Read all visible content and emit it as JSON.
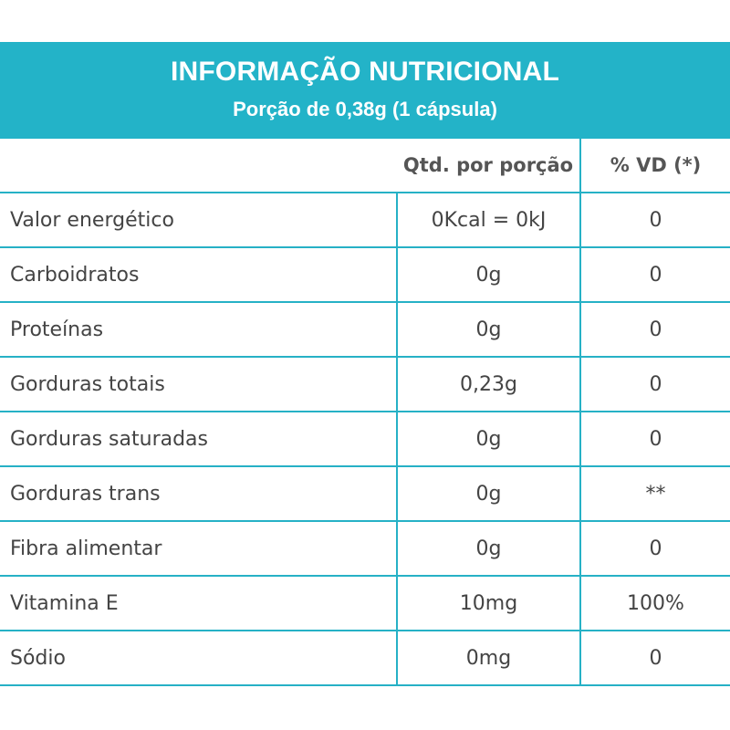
{
  "header": {
    "title": "INFORMAÇÃO NUTRICIONAL",
    "subtitle": "Porção de 0,38g (1 cápsula)"
  },
  "table": {
    "columns": [
      "",
      "Qtd. por porção",
      "% VD (*)"
    ],
    "rows": [
      {
        "name": "Valor energético",
        "qty": "0Kcal = 0kJ",
        "vd": "0"
      },
      {
        "name": "Carboidratos",
        "qty": "0g",
        "vd": "0"
      },
      {
        "name": "Proteínas",
        "qty": "0g",
        "vd": "0"
      },
      {
        "name": "Gorduras totais",
        "qty": "0,23g",
        "vd": "0"
      },
      {
        "name": "Gorduras saturadas",
        "qty": "0g",
        "vd": "0"
      },
      {
        "name": "Gorduras trans",
        "qty": "0g",
        "vd": "**"
      },
      {
        "name": "Fibra alimentar",
        "qty": "0g",
        "vd": "0"
      },
      {
        "name": "Vitamina E",
        "qty": "10mg",
        "vd": "100%"
      },
      {
        "name": "Sódio",
        "qty": "0mg",
        "vd": "0"
      }
    ]
  },
  "colors": {
    "accent": "#23b3c8",
    "border": "#26b1c6",
    "text": "#444444"
  }
}
